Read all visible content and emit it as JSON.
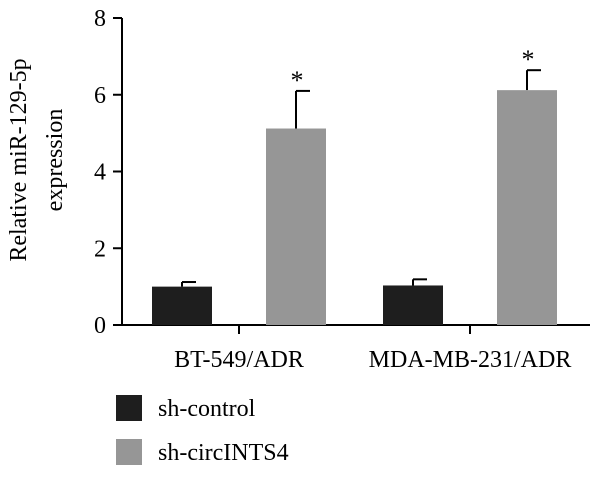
{
  "chart_data": {
    "type": "bar",
    "categories": [
      "BT-549/ADR",
      "MDA-MB-231/ADR"
    ],
    "series": [
      {
        "name": "sh-control",
        "values": [
          1.0,
          1.03
        ],
        "errors": [
          0.12,
          0.16
        ],
        "color": "#1e1e1e",
        "significance": [
          "",
          ""
        ]
      },
      {
        "name": "sh-circINTS4",
        "values": [
          5.12,
          6.12
        ],
        "errors": [
          0.98,
          0.52
        ],
        "color": "#969696",
        "significance": [
          "*",
          "*"
        ]
      }
    ],
    "ylabel": [
      "Relative miR-129-5p",
      "expression"
    ],
    "ylim": [
      0,
      8
    ],
    "yticks": [
      "0",
      "2",
      "4",
      "6",
      "8"
    ],
    "grid": false,
    "legend_position": "bottom-left"
  }
}
